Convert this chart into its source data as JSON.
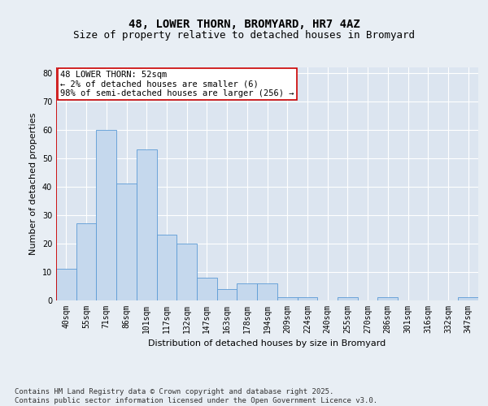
{
  "title1": "48, LOWER THORN, BROMYARD, HR7 4AZ",
  "title2": "Size of property relative to detached houses in Bromyard",
  "xlabel": "Distribution of detached houses by size in Bromyard",
  "ylabel": "Number of detached properties",
  "categories": [
    "40sqm",
    "55sqm",
    "71sqm",
    "86sqm",
    "101sqm",
    "117sqm",
    "132sqm",
    "147sqm",
    "163sqm",
    "178sqm",
    "194sqm",
    "209sqm",
    "224sqm",
    "240sqm",
    "255sqm",
    "270sqm",
    "286sqm",
    "301sqm",
    "316sqm",
    "332sqm",
    "347sqm"
  ],
  "values": [
    11,
    27,
    60,
    41,
    53,
    23,
    20,
    8,
    4,
    6,
    6,
    1,
    1,
    0,
    1,
    0,
    1,
    0,
    0,
    0,
    1
  ],
  "bar_color": "#c5d8ed",
  "bar_edge_color": "#5b9bd5",
  "highlight_color": "#cc0000",
  "annotation_text": "48 LOWER THORN: 52sqm\n← 2% of detached houses are smaller (6)\n98% of semi-detached houses are larger (256) →",
  "annotation_box_color": "#ffffff",
  "annotation_box_edge": "#cc0000",
  "ylim": [
    0,
    82
  ],
  "yticks": [
    0,
    10,
    20,
    30,
    40,
    50,
    60,
    70,
    80
  ],
  "footer_text": "Contains HM Land Registry data © Crown copyright and database right 2025.\nContains public sector information licensed under the Open Government Licence v3.0.",
  "background_color": "#e8eef4",
  "plot_bg_color": "#dce5f0",
  "grid_color": "#ffffff",
  "title_fontsize": 10,
  "subtitle_fontsize": 9,
  "axis_label_fontsize": 8,
  "tick_fontsize": 7,
  "footer_fontsize": 6.5,
  "annotation_fontsize": 7.5
}
